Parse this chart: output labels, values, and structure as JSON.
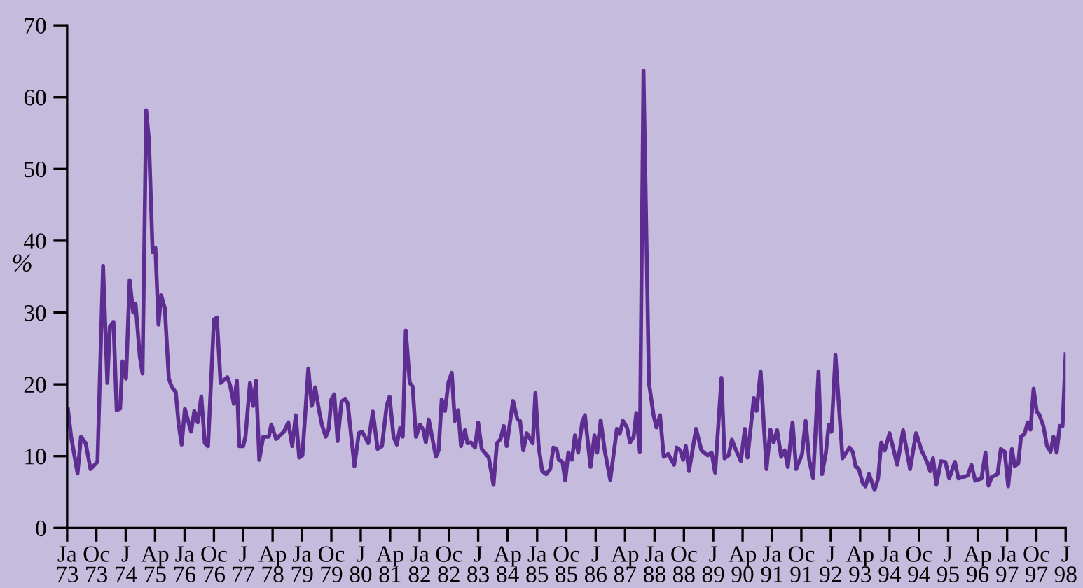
{
  "chart_data": {
    "type": "line",
    "ylabel": "%",
    "ylim": [
      0,
      70
    ],
    "yticks": [
      0,
      10,
      20,
      30,
      40,
      50,
      60,
      70
    ],
    "xlim": [
      "1973-01-01",
      "1998-07-01"
    ],
    "xticks": [
      {
        "value": "1973-01",
        "label": "Ja\n73"
      },
      {
        "value": "1973-10",
        "label": "Oc\n73"
      },
      {
        "value": "1974-07",
        "label": "J\n74"
      },
      {
        "value": "1975-04",
        "label": "Ap\n75"
      },
      {
        "value": "1976-01",
        "label": "Ja\n76"
      },
      {
        "value": "1976-10",
        "label": "Oc\n76"
      },
      {
        "value": "1977-07",
        "label": "J\n77"
      },
      {
        "value": "1978-04",
        "label": "Ap\n78"
      },
      {
        "value": "1979-01",
        "label": "Ja\n79"
      },
      {
        "value": "1979-10",
        "label": "Oc\n79"
      },
      {
        "value": "1980-07",
        "label": "J\n80"
      },
      {
        "value": "1981-04",
        "label": "Ap\n81"
      },
      {
        "value": "1982-01",
        "label": "Ja\n82"
      },
      {
        "value": "1982-10",
        "label": "Oc\n82"
      },
      {
        "value": "1983-07",
        "label": "J\n83"
      },
      {
        "value": "1984-04",
        "label": "Ap\n84"
      },
      {
        "value": "1985-01",
        "label": "Ja\n85"
      },
      {
        "value": "1985-10",
        "label": "Oc\n85"
      },
      {
        "value": "1986-07",
        "label": "J\n86"
      },
      {
        "value": "1987-04",
        "label": "Ap\n87"
      },
      {
        "value": "1988-01",
        "label": "Ja\n88"
      },
      {
        "value": "1988-10",
        "label": "Oc\n88"
      },
      {
        "value": "1989-07",
        "label": "J\n89"
      },
      {
        "value": "1990-04",
        "label": "Ap\n90"
      },
      {
        "value": "1991-01",
        "label": "Ja\n91"
      },
      {
        "value": "1991-10",
        "label": "Oc\n91"
      },
      {
        "value": "1992-07",
        "label": "J\n92"
      },
      {
        "value": "1993-04",
        "label": "Ap\n93"
      },
      {
        "value": "1994-01",
        "label": "Ja\n94"
      },
      {
        "value": "1994-10",
        "label": "Oc\n94"
      },
      {
        "value": "1995-07",
        "label": "J\n95"
      },
      {
        "value": "1996-04",
        "label": "Ap\n96"
      },
      {
        "value": "1997-01",
        "label": "Ja\n97"
      },
      {
        "value": "1997-10",
        "label": "Oc\n97"
      },
      {
        "value": "1998-07",
        "label": "J\n98"
      }
    ],
    "grid": false,
    "marker": "none",
    "line_style": "solid",
    "series": [
      {
        "color": "#5e2d91",
        "x": [
          "1973-01-08",
          "1973-02-07",
          "1973-04-08",
          "1973-05-10",
          "1973-06-23",
          "1973-08-07",
          "1973-10-11",
          "1973-12-02",
          "1974-01-11",
          "1974-02-03",
          "1974-03-09",
          "1974-04-08",
          "1974-05-10",
          "1974-06-02",
          "1974-07-04",
          "1974-08-07",
          "1974-09-09",
          "1974-10-01",
          "1974-11-10",
          "1974-12-05",
          "1975-01-08",
          "1975-02-03",
          "1975-03-09",
          "1975-04-04",
          "1975-05-03",
          "1975-05-28",
          "1975-07-01",
          "1975-08-07",
          "1975-09-05",
          "1975-10-11",
          "1975-11-07",
          "1975-12-05",
          "1976-01-04",
          "1976-02-07",
          "1976-03-02",
          "1976-04-01",
          "1976-05-03",
          "1976-06-05",
          "1976-07-08",
          "1976-08-07",
          "1976-10-01",
          "1976-10-28",
          "1976-12-02",
          "1977-02-03",
          "1977-02-28",
          "1977-04-04",
          "1977-05-03",
          "1977-05-25",
          "1977-07-01",
          "1977-07-22",
          "1977-09-02",
          "1977-10-01",
          "1977-10-28",
          "1977-11-28",
          "1978-01-04",
          "1978-02-25",
          "1978-03-20",
          "1978-05-03",
          "1978-07-15",
          "1978-08-25",
          "1978-10-01",
          "1978-11-03",
          "1978-12-05",
          "1979-01-04",
          "1979-02-28",
          "1979-04-01",
          "1979-05-03",
          "1979-06-09",
          "1979-07-04",
          "1979-08-10",
          "1979-09-05",
          "1979-10-01",
          "1979-10-28",
          "1979-11-28",
          "1980-01-04",
          "1980-02-07",
          "1980-03-02",
          "1980-05-03",
          "1980-06-13",
          "1980-07-15",
          "1980-09-09",
          "1980-10-22",
          "1980-12-05",
          "1981-01-15",
          "1981-02-28",
          "1981-03-27",
          "1981-05-03",
          "1981-06-02",
          "1981-07-04",
          "1981-07-28",
          "1981-08-25",
          "1981-10-01",
          "1981-10-28",
          "1981-11-28",
          "1982-01-04",
          "1982-02-03",
          "1982-02-28",
          "1982-03-27",
          "1982-06-02",
          "1982-06-27",
          "1982-07-26",
          "1982-08-25",
          "1982-09-27",
          "1982-10-28",
          "1982-11-25",
          "1982-12-27",
          "1983-01-22",
          "1983-02-28",
          "1983-03-23",
          "1983-04-26",
          "1983-06-02",
          "1983-07-01",
          "1983-08-03",
          "1983-10-08",
          "1983-11-21",
          "1983-12-23",
          "1984-01-26",
          "1984-02-25",
          "1984-03-23",
          "1984-05-21",
          "1984-07-01",
          "1984-07-26",
          "1984-08-25",
          "1984-09-27",
          "1984-11-21",
          "1984-12-16",
          "1985-01-15",
          "1985-02-17",
          "1985-03-27",
          "1985-05-03",
          "1985-06-02",
          "1985-07-01",
          "1985-07-22",
          "1985-08-25",
          "1985-09-20",
          "1985-10-19",
          "1985-11-21",
          "1985-12-20",
          "1986-01-19",
          "1986-02-25",
          "1986-03-23",
          "1986-05-14",
          "1986-06-20",
          "1986-07-15",
          "1986-08-17",
          "1986-09-23",
          "1986-11-14",
          "1987-01-15",
          "1987-02-10",
          "1987-03-13",
          "1987-04-19",
          "1987-05-17",
          "1987-06-20",
          "1987-07-15",
          "1987-08-17",
          "1987-09-20",
          "1987-11-10",
          "1987-12-23",
          "1988-01-19",
          "1988-02-21",
          "1988-03-27",
          "1988-05-07",
          "1988-07-01",
          "1988-07-26",
          "1988-08-28",
          "1988-09-23",
          "1988-10-19",
          "1988-11-17",
          "1989-01-22",
          "1989-03-13",
          "1989-05-10",
          "1989-06-16",
          "1989-07-19",
          "1989-09-16",
          "1989-10-15",
          "1989-11-21",
          "1989-12-23",
          "1990-01-22",
          "1990-03-16",
          "1990-04-22",
          "1990-05-17",
          "1990-07-15",
          "1990-08-10",
          "1990-09-16",
          "1990-11-10",
          "1990-12-16",
          "1991-01-15",
          "1991-02-17",
          "1991-03-27",
          "1991-04-28",
          "1991-05-28",
          "1991-07-11",
          "1991-08-14",
          "1991-10-08",
          "1991-11-10",
          "1991-12-13",
          "1992-01-19",
          "1992-03-09",
          "1992-04-11",
          "1992-05-17",
          "1992-06-13",
          "1992-07-08",
          "1992-08-14",
          "1992-10-19",
          "1992-12-23",
          "1993-01-22",
          "1993-02-17",
          "1993-03-20",
          "1993-04-26",
          "1993-05-21",
          "1993-06-23",
          "1993-08-14",
          "1993-09-16",
          "1993-10-15",
          "1993-11-17",
          "1994-01-01",
          "1994-03-13",
          "1994-05-07",
          "1994-07-11",
          "1994-09-05",
          "1994-10-26",
          "1994-12-16",
          "1995-01-15",
          "1995-02-10",
          "1995-03-13",
          "1995-04-26",
          "1995-06-05",
          "1995-07-11",
          "1995-09-02",
          "1995-10-04",
          "1996-01-01",
          "1996-02-03",
          "1996-03-09",
          "1996-05-07",
          "1996-06-13",
          "1996-07-11",
          "1996-08-10",
          "1996-10-04",
          "1996-11-03",
          "1996-12-09",
          "1997-01-11",
          "1997-02-14",
          "1997-03-13",
          "1997-04-15",
          "1997-05-10",
          "1997-06-13",
          "1997-07-11",
          "1997-08-07",
          "1997-09-05",
          "1997-10-04",
          "1997-10-28",
          "1997-12-05",
          "1998-01-08",
          "1998-02-10",
          "1998-03-09",
          "1998-04-08",
          "1998-05-07",
          "1998-06-02",
          "1998-07-01"
        ],
        "values": [
          16.6,
          12.7,
          7.6,
          12.7,
          11.8,
          8.2,
          9.2,
          36.5,
          20.2,
          28,
          28.7,
          16.4,
          16.6,
          23.2,
          20.8,
          34.5,
          30,
          31.2,
          23.8,
          21.5,
          58.2,
          54,
          38.4,
          39,
          28.3,
          32.4,
          30.6,
          20.8,
          19.6,
          18.9,
          14.4,
          11.6,
          16.6,
          14.7,
          13.4,
          16.3,
          14.7,
          18.3,
          11.8,
          11.4,
          29,
          29.3,
          20.2,
          21,
          19.9,
          17.3,
          20.5,
          11.4,
          11.4,
          12.7,
          20.2,
          17,
          20.5,
          9.5,
          12.7,
          12.7,
          14.4,
          12.4,
          13.4,
          14.7,
          11.4,
          15.7,
          9.8,
          10.1,
          22.2,
          17,
          19.6,
          16.3,
          14.4,
          12.7,
          13.7,
          17.9,
          18.6,
          12.1,
          17.6,
          18,
          17.3,
          8.6,
          13.2,
          13.4,
          11.8,
          16.2,
          11,
          11.4,
          17,
          18.3,
          12.7,
          11.6,
          14,
          12.7,
          27.5,
          20.2,
          19.7,
          12.7,
          14.4,
          13.7,
          11.9,
          15.1,
          9.9,
          10.8,
          17.9,
          16.3,
          20.3,
          21.6,
          14.9,
          16.4,
          11.4,
          13.6,
          11.8,
          11.9,
          11.2,
          14.7,
          11,
          9.8,
          6,
          11.8,
          12.4,
          14.2,
          11.4,
          17.7,
          15.1,
          14.9,
          10.8,
          13.2,
          11.8,
          18.8,
          11.4,
          7.9,
          7.5,
          8.2,
          11.2,
          11,
          9.5,
          9.2,
          6.6,
          10.5,
          9.5,
          12.9,
          10.5,
          14.7,
          15.7,
          8.5,
          12.9,
          10.5,
          15,
          10.8,
          6.7,
          13.8,
          13.1,
          14.9,
          14,
          11.9,
          12.7,
          16,
          10.6,
          63.7,
          20.2,
          15.7,
          14,
          15.7,
          9.9,
          10.3,
          8.8,
          11.2,
          10.8,
          9.5,
          11.4,
          7.9,
          13.8,
          10.8,
          10.1,
          10.5,
          7.7,
          20.9,
          9.7,
          10.1,
          12.3,
          11.1,
          9.3,
          13.8,
          9.8,
          18.1,
          16.3,
          21.8,
          8.2,
          13.7,
          11.9,
          13.6,
          9.9,
          10.8,
          8.5,
          14.7,
          8.2,
          10.3,
          14.9,
          9.5,
          6.9,
          21.8,
          7.5,
          10.5,
          14.4,
          13.4,
          24.1,
          9.7,
          11.2,
          10.6,
          8.6,
          8.2,
          6.2,
          5.8,
          7.5,
          5.3,
          6.9,
          11.9,
          10.8,
          13.2,
          8.8,
          13.6,
          8.2,
          13.2,
          10.8,
          9.2,
          7.9,
          9.7,
          6,
          9.3,
          9.2,
          6.9,
          9.2,
          6.9,
          7.3,
          8.8,
          6.6,
          6.9,
          10.5,
          5.9,
          7.1,
          7.5,
          11,
          10.6,
          5.8,
          11,
          8.6,
          9,
          12.7,
          13.1,
          14.7,
          13.7,
          19.4,
          16.2,
          15.8,
          14.2,
          11.4,
          10.6,
          12.7,
          10.5,
          14.2,
          14.2,
          24.2
        ]
      }
    ]
  }
}
